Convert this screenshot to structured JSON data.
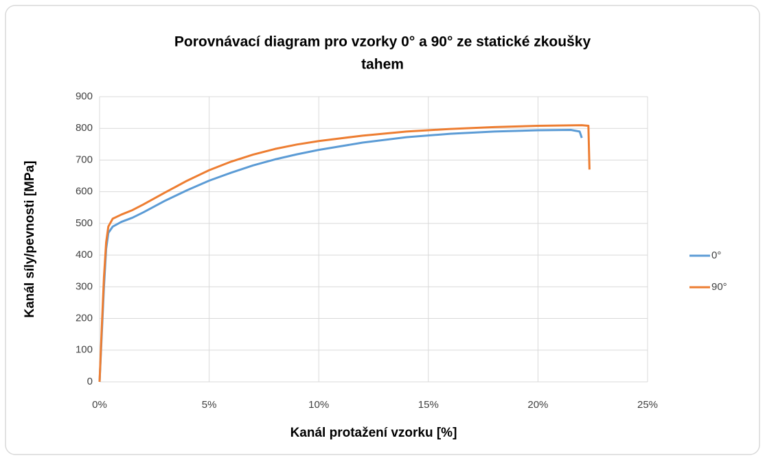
{
  "chart_data": {
    "type": "line",
    "title": [
      "Porovnávací diagram pro vzorky 0° a 90° ze statické zkoušky",
      "tahem"
    ],
    "xlabel": "Kanál protažení vzorku [%]",
    "ylabel": "Kanál síly/pevnosti [MPa]",
    "xlim": [
      0,
      25
    ],
    "xticks": [
      {
        "value": 0,
        "label": "0%"
      },
      {
        "value": 5,
        "label": "5%"
      },
      {
        "value": 10,
        "label": "10%"
      },
      {
        "value": 15,
        "label": "15%"
      },
      {
        "value": 20,
        "label": "20%"
      },
      {
        "value": 25,
        "label": "25%"
      }
    ],
    "ylim": [
      0,
      900
    ],
    "yticks": [
      0,
      100,
      200,
      300,
      400,
      500,
      600,
      700,
      800,
      900
    ],
    "grid": true,
    "legend": "right",
    "series": [
      {
        "name": "0°",
        "color": "#5b9bd5",
        "x": [
          0,
          0.1,
          0.2,
          0.3,
          0.4,
          0.6,
          1.0,
          1.5,
          2,
          3,
          4,
          5,
          6,
          7,
          8,
          9,
          10,
          12,
          14,
          16,
          18,
          20,
          21.5,
          21.9,
          22.0
        ],
        "values": [
          0,
          150,
          300,
          420,
          470,
          490,
          505,
          518,
          535,
          572,
          605,
          635,
          660,
          683,
          702,
          718,
          732,
          755,
          772,
          783,
          790,
          794,
          795,
          790,
          770
        ]
      },
      {
        "name": "90°",
        "color": "#ed7d31",
        "x": [
          0,
          0.1,
          0.2,
          0.3,
          0.4,
          0.6,
          1.0,
          1.5,
          2,
          3,
          4,
          5,
          6,
          7,
          8,
          9,
          10,
          12,
          14,
          16,
          18,
          20,
          22,
          22.3,
          22.35
        ],
        "values": [
          0,
          170,
          330,
          440,
          490,
          515,
          528,
          542,
          560,
          598,
          635,
          668,
          695,
          717,
          735,
          749,
          760,
          777,
          790,
          798,
          804,
          808,
          810,
          808,
          670
        ]
      }
    ]
  }
}
